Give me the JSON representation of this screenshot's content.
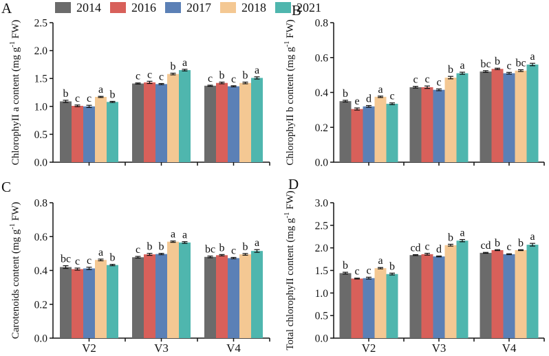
{
  "figure": {
    "legend": {
      "position": "top",
      "items": [
        {
          "label": "2014",
          "color": "#6B6B6B"
        },
        {
          "label": "2016",
          "color": "#D8605A"
        },
        {
          "label": "2017",
          "color": "#5B80B6"
        },
        {
          "label": "2018",
          "color": "#F4C893"
        },
        {
          "label": "2021",
          "color": "#4FB6AE"
        }
      ]
    },
    "axis_color": "#111111",
    "background": "#FFFFFF"
  },
  "chart_data": [
    {
      "type": "bar",
      "panel": "A",
      "title": "",
      "ylabel": "ChlorophyII a content (mg g^-1^ FW)",
      "xlabel": "",
      "categories": [
        "V2",
        "V3",
        "V4"
      ],
      "show_x_labels": false,
      "ylim": [
        0,
        2.5
      ],
      "yticks": [
        0,
        0.5,
        1.0,
        1.5,
        2.0,
        2.5
      ],
      "grid": false,
      "series": [
        {
          "name": "2014",
          "values": [
            1.09,
            1.41,
            1.37
          ],
          "errors": [
            0.02,
            0.01,
            0.01
          ],
          "letters": [
            "b",
            "c",
            "c"
          ]
        },
        {
          "name": "2016",
          "values": [
            1.01,
            1.43,
            1.42
          ],
          "errors": [
            0.015,
            0.02,
            0.015
          ],
          "letters": [
            "c",
            "c",
            "b"
          ]
        },
        {
          "name": "2017",
          "values": [
            1.0,
            1.4,
            1.36
          ],
          "errors": [
            0.02,
            0.01,
            0.01
          ],
          "letters": [
            "c",
            "c",
            "c"
          ]
        },
        {
          "name": "2018",
          "values": [
            1.17,
            1.58,
            1.42
          ],
          "errors": [
            0.01,
            0.015,
            0.015
          ],
          "letters": [
            "a",
            "b",
            "b"
          ]
        },
        {
          "name": "2021",
          "values": [
            1.08,
            1.65,
            1.51
          ],
          "errors": [
            0.01,
            0.015,
            0.02
          ],
          "letters": [
            "b",
            "a",
            "a"
          ]
        }
      ]
    },
    {
      "type": "bar",
      "panel": "B",
      "title": "",
      "ylabel": "ChlorophyII b content (mg g^-1^ FW)",
      "xlabel": "",
      "categories": [
        "V2",
        "V3",
        "V4"
      ],
      "show_x_labels": false,
      "ylim": [
        0,
        0.8
      ],
      "yticks": [
        0,
        0.2,
        0.4,
        0.6,
        0.8
      ],
      "grid": false,
      "series": [
        {
          "name": "2014",
          "values": [
            0.35,
            0.43,
            0.52
          ],
          "errors": [
            0.005,
            0.005,
            0.005
          ],
          "letters": [
            "b",
            "c",
            "bc"
          ]
        },
        {
          "name": "2016",
          "values": [
            0.305,
            0.43,
            0.535
          ],
          "errors": [
            0.006,
            0.007,
            0.004
          ],
          "letters": [
            "e",
            "c",
            "b"
          ]
        },
        {
          "name": "2017",
          "values": [
            0.32,
            0.415,
            0.51
          ],
          "errors": [
            0.005,
            0.005,
            0.005
          ],
          "letters": [
            "d",
            "c",
            "c"
          ]
        },
        {
          "name": "2018",
          "values": [
            0.375,
            0.485,
            0.525
          ],
          "errors": [
            0.004,
            0.007,
            0.005
          ],
          "letters": [
            "a",
            "b",
            "bc"
          ]
        },
        {
          "name": "2021",
          "values": [
            0.335,
            0.51,
            0.56
          ],
          "errors": [
            0.005,
            0.006,
            0.007
          ],
          "letters": [
            "c",
            "a",
            "a"
          ]
        }
      ]
    },
    {
      "type": "bar",
      "panel": "C",
      "title": "",
      "ylabel": "Carotenoids content (mg g^-1^ FW)",
      "xlabel": "",
      "categories": [
        "V2",
        "V3",
        "V4"
      ],
      "show_x_labels": true,
      "ylim": [
        0,
        0.8
      ],
      "yticks": [
        0,
        0.2,
        0.4,
        0.6,
        0.8
      ],
      "grid": false,
      "series": [
        {
          "name": "2014",
          "values": [
            0.42,
            0.478,
            0.48
          ],
          "errors": [
            0.008,
            0.005,
            0.005
          ],
          "letters": [
            "bc",
            "c",
            "bc"
          ]
        },
        {
          "name": "2016",
          "values": [
            0.408,
            0.495,
            0.49
          ],
          "errors": [
            0.006,
            0.006,
            0.004
          ],
          "letters": [
            "c",
            "b",
            "b"
          ]
        },
        {
          "name": "2017",
          "values": [
            0.412,
            0.497,
            0.473
          ],
          "errors": [
            0.007,
            0.004,
            0.004
          ],
          "letters": [
            "c",
            "b",
            "c"
          ]
        },
        {
          "name": "2018",
          "values": [
            0.462,
            0.57,
            0.495
          ],
          "errors": [
            0.005,
            0.004,
            0.005
          ],
          "letters": [
            "a",
            "a",
            "b"
          ]
        },
        {
          "name": "2021",
          "values": [
            0.432,
            0.565,
            0.515
          ],
          "errors": [
            0.004,
            0.005,
            0.008
          ],
          "letters": [
            "b",
            "a",
            "a"
          ]
        }
      ]
    },
    {
      "type": "bar",
      "panel": "D",
      "title": "",
      "ylabel": "Total chlorophyII content (mg g^-1^ FW)",
      "xlabel": "",
      "categories": [
        "V2",
        "V3",
        "V4"
      ],
      "show_x_labels": true,
      "ylim": [
        0,
        3.0
      ],
      "yticks": [
        0,
        0.5,
        1.0,
        1.5,
        2.0,
        2.5,
        3.0
      ],
      "grid": false,
      "series": [
        {
          "name": "2014",
          "values": [
            1.44,
            1.84,
            1.89
          ],
          "errors": [
            0.02,
            0.01,
            0.01
          ],
          "letters": [
            "b",
            "cd",
            "cd"
          ]
        },
        {
          "name": "2016",
          "values": [
            1.32,
            1.86,
            1.95
          ],
          "errors": [
            0.01,
            0.02,
            0.01
          ],
          "letters": [
            "c",
            "c",
            "b"
          ]
        },
        {
          "name": "2017",
          "values": [
            1.33,
            1.81,
            1.86
          ],
          "errors": [
            0.02,
            0.01,
            0.01
          ],
          "letters": [
            "c",
            "d",
            "c"
          ]
        },
        {
          "name": "2018",
          "values": [
            1.55,
            2.06,
            1.95
          ],
          "errors": [
            0.015,
            0.02,
            0.01
          ],
          "letters": [
            "a",
            "b",
            "b"
          ]
        },
        {
          "name": "2021",
          "values": [
            1.42,
            2.16,
            2.07
          ],
          "errors": [
            0.02,
            0.025,
            0.03
          ],
          "letters": [
            "b",
            "a",
            "a"
          ]
        }
      ]
    }
  ]
}
